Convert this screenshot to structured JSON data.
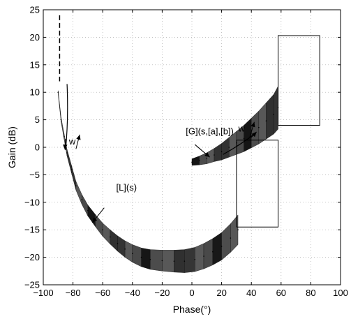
{
  "chart_data": {
    "type": "line",
    "title": "",
    "xlabel": "Phase(°)",
    "ylabel": "Gain (dB)",
    "xlim": [
      -100,
      100
    ],
    "ylim": [
      -25,
      25
    ],
    "xticks": [
      -100,
      -80,
      -60,
      -40,
      -20,
      0,
      20,
      40,
      60,
      80,
      100
    ],
    "yticks": [
      -25,
      -20,
      -15,
      -10,
      -5,
      0,
      5,
      10,
      15,
      20,
      25
    ],
    "grid": true,
    "colors": {
      "ink": "#000000",
      "grid": "#aaaaaa"
    },
    "annotations": [
      {
        "text": "[L](s)",
        "x": -44,
        "y": -7.3
      },
      {
        "text": "[G](s,[a],[b])",
        "x": 12,
        "y": 2.9
      },
      {
        "text": "w",
        "x": -80.5,
        "y": 1.1
      },
      {
        "text": "w",
        "x": 33.5,
        "y": 3.4
      }
    ],
    "series": [
      {
        "style": "dashed",
        "x": [
          -89,
          -89
        ],
        "y": [
          24,
          12
        ]
      },
      {
        "style": "band",
        "x": [
          -90,
          -88,
          -86,
          -84,
          -81,
          -78,
          -74,
          -70,
          -65,
          -60,
          -55,
          -50,
          -45,
          -40,
          -34,
          -28,
          -20,
          -12,
          -5,
          2,
          8,
          14,
          20,
          26,
          31
        ],
        "y": [
          10,
          5,
          2,
          -1,
          -4,
          -7,
          -9.5,
          -11.5,
          -13.3,
          -15,
          -16.3,
          -17.5,
          -18.5,
          -19.3,
          -20,
          -20.4,
          -20.6,
          -20.7,
          -20.7,
          -20.4,
          -19.8,
          -19,
          -18,
          -16.5,
          -15
        ],
        "width": [
          0.3,
          0.4,
          0.5,
          0.6,
          0.7,
          0.8,
          0.9,
          1.0,
          1.1,
          1.2,
          1.3,
          1.4,
          1.5,
          1.6,
          1.7,
          1.8,
          1.9,
          2.0,
          2.1,
          2.2,
          2.3,
          2.4,
          2.5,
          2.6,
          2.7
        ]
      },
      {
        "style": "band",
        "x": [
          0,
          5,
          10,
          15,
          20,
          25,
          30,
          35,
          40,
          45,
          50,
          55,
          58
        ],
        "y": [
          -2.7,
          -2.4,
          -2.0,
          -1.4,
          -0.8,
          0.0,
          0.8,
          1.6,
          2.6,
          3.6,
          4.8,
          6.0,
          7.2
        ],
        "width": [
          0.6,
          0.8,
          1.0,
          1.2,
          1.5,
          1.8,
          2.1,
          2.4,
          2.7,
          3.0,
          3.3,
          3.6,
          3.9
        ]
      },
      {
        "style": "box",
        "x": [
          58,
          86,
          86,
          58,
          58
        ],
        "y": [
          4,
          4,
          20.3,
          20.3,
          4
        ]
      },
      {
        "style": "box",
        "x": [
          30,
          58,
          58,
          30,
          30
        ],
        "y": [
          -14.5,
          -14.5,
          1.3,
          1.3,
          -14.5
        ]
      }
    ]
  }
}
